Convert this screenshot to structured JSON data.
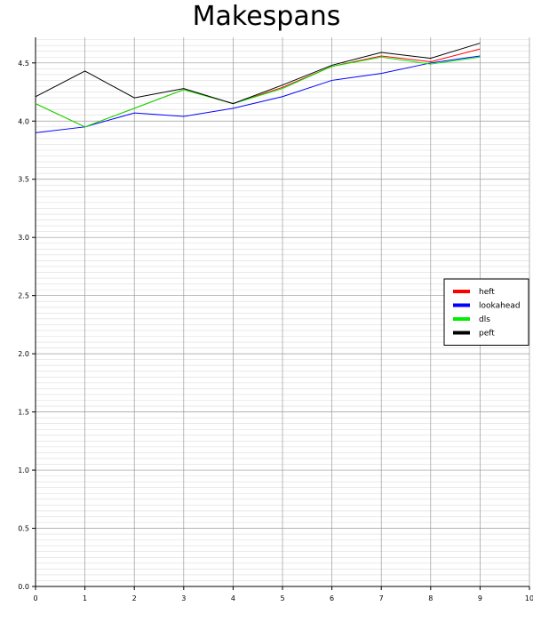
{
  "chart_data": {
    "type": "line",
    "title": "Makespans",
    "xlabel": "",
    "ylabel": "",
    "x": [
      0,
      1,
      2,
      3,
      4,
      5,
      6,
      7,
      8,
      9
    ],
    "xlim": [
      0,
      10
    ],
    "ylim": [
      0.0,
      4.72
    ],
    "x_ticks": [
      0,
      1,
      2,
      3,
      4,
      5,
      6,
      7,
      8,
      9,
      "10"
    ],
    "y_ticks": [
      "0.0",
      "0.5",
      "1.0",
      "1.5",
      "2.0",
      "2.5",
      "3.0",
      "3.5",
      "4.0",
      "4.5"
    ],
    "grid": true,
    "legend_position": "right",
    "series": [
      {
        "name": "heft",
        "color": "#ff0000",
        "values": [
          4.15,
          3.95,
          4.11,
          4.27,
          4.15,
          4.29,
          4.47,
          4.56,
          4.51,
          4.62
        ]
      },
      {
        "name": "lookahead",
        "color": "#0000ff",
        "values": [
          3.9,
          3.95,
          4.07,
          4.04,
          4.11,
          4.21,
          4.35,
          4.41,
          4.5,
          4.56
        ]
      },
      {
        "name": "dls",
        "color": "#00ee00",
        "values": [
          4.15,
          3.95,
          4.11,
          4.27,
          4.15,
          4.28,
          4.47,
          4.55,
          4.49,
          4.55
        ]
      },
      {
        "name": "peft",
        "color": "#000000",
        "values": [
          4.21,
          4.43,
          4.2,
          4.28,
          4.15,
          4.31,
          4.48,
          4.59,
          4.54,
          4.67
        ]
      }
    ]
  }
}
